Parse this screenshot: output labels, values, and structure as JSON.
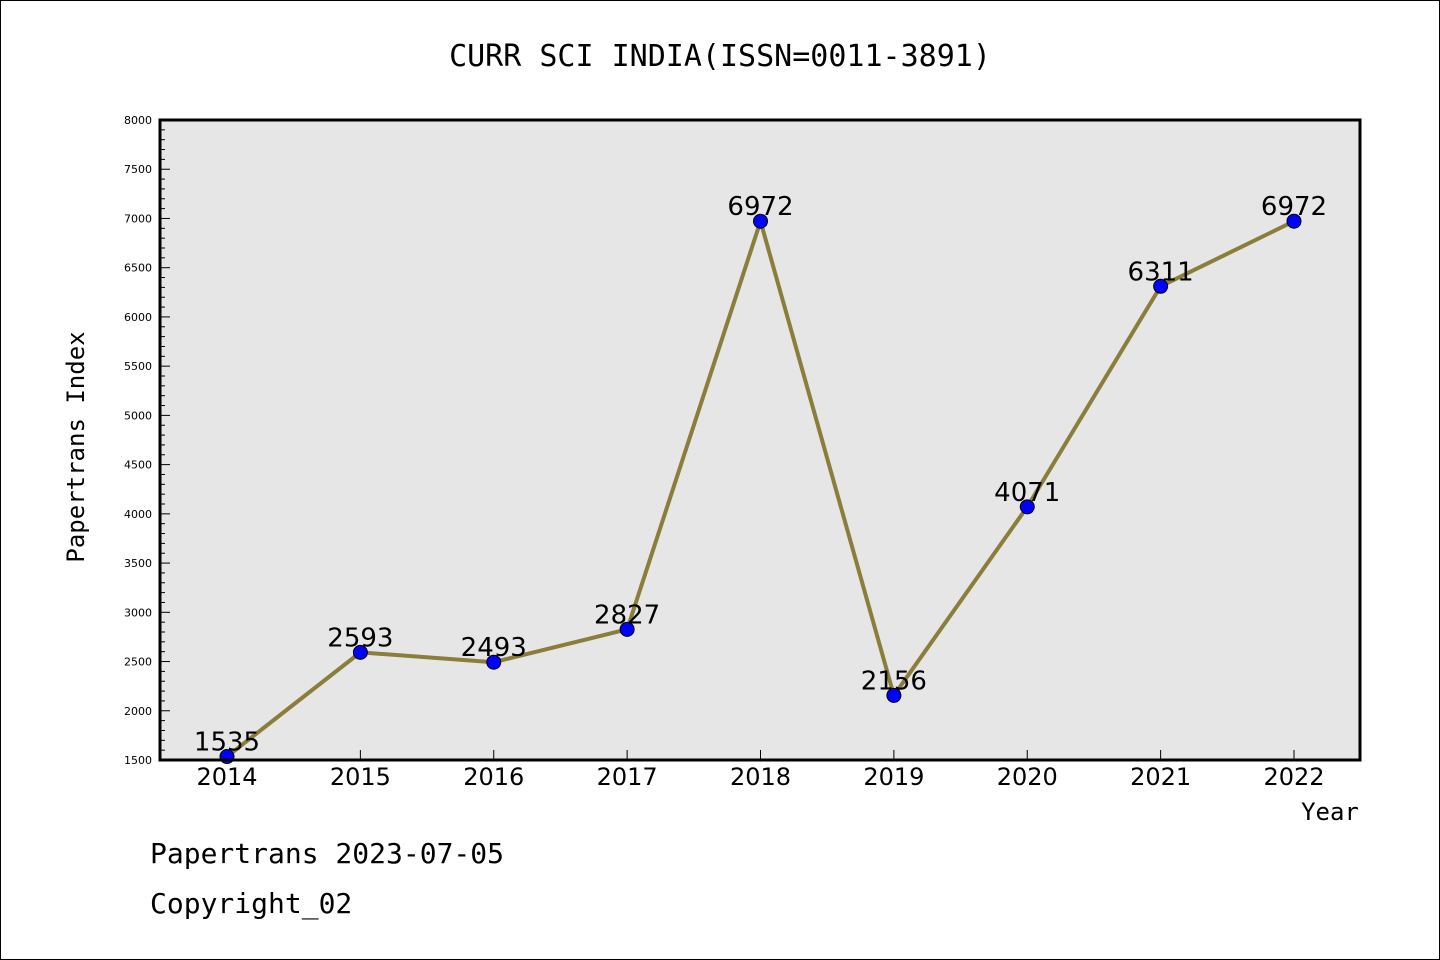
{
  "footer": {
    "line1": "Papertrans 2023-07-05",
    "line2": "Copyright_02"
  },
  "colors": {
    "plot_background": "#e6e6e6",
    "line": "#8b7d3a",
    "marker": "#0000ff"
  },
  "chart_data": {
    "type": "line",
    "title": "CURR SCI INDIA(ISSN=0011-3891)",
    "xlabel": "Year",
    "ylabel": "Papertrans Index",
    "x": [
      "2014",
      "2015",
      "2016",
      "2017",
      "2018",
      "2019",
      "2020",
      "2021",
      "2022"
    ],
    "series": [
      {
        "values": [
          1535,
          2593,
          2493,
          2827,
          6972,
          2156,
          4071,
          6311,
          6972
        ]
      }
    ],
    "data_labels": [
      "1535",
      "2593",
      "2493",
      "2827",
      "6972",
      "2156",
      "4071",
      "6311",
      "6972"
    ],
    "ylim": [
      1500,
      8000
    ],
    "yticks": [
      1500,
      2000,
      2500,
      3000,
      3500,
      4000,
      4500,
      5000,
      5500,
      6000,
      6500,
      7000,
      7500,
      8000
    ],
    "grid": false,
    "legend": "none"
  }
}
